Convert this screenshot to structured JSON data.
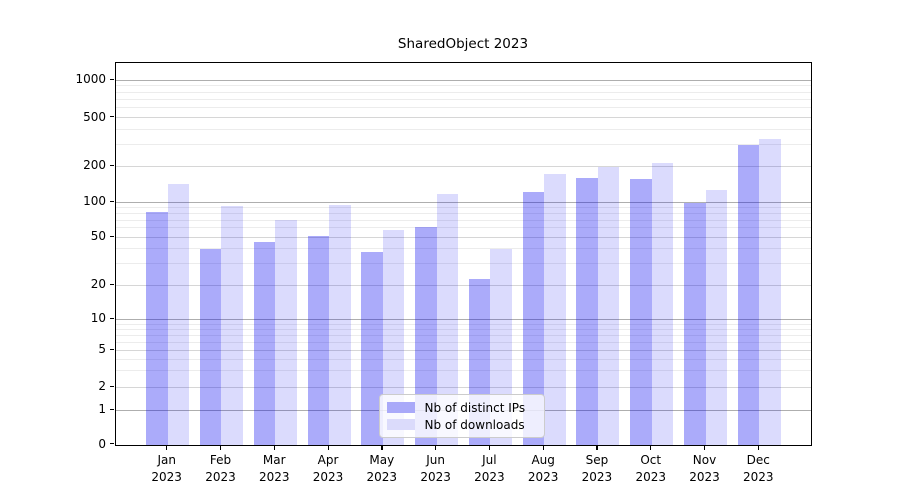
{
  "title": "SharedObject 2023",
  "legend": {
    "items": [
      {
        "label": "Nb of distinct IPs",
        "series": "distinct_ips"
      },
      {
        "label": "Nb of downloads",
        "series": "downloads"
      }
    ]
  },
  "colors": {
    "distinct_ips": "#a9a9f9",
    "downloads": "#dbdbfb",
    "distinct_ips_rgba": "rgba(0,0,240,0.33)",
    "downloads_rgba": "rgba(0,0,240,0.14)",
    "grid_major": "#aeaeae",
    "grid_tick": "#d6d6d6",
    "grid_minor": "#ececec"
  },
  "y_axis": {
    "tick_labels": [
      "0",
      "1",
      "2",
      "5",
      "10",
      "20",
      "50",
      "100",
      "200",
      "500",
      "1000"
    ]
  },
  "x_axis": {
    "months": [
      "Jan",
      "Feb",
      "Mar",
      "Apr",
      "May",
      "Jun",
      "Jul",
      "Aug",
      "Sep",
      "Oct",
      "Nov",
      "Dec"
    ],
    "year": "2023"
  },
  "chart_data": {
    "type": "bar",
    "title": "SharedObject 2023",
    "xlabel": "",
    "ylabel": "",
    "categories": [
      "Jan 2023",
      "Feb 2023",
      "Mar 2023",
      "Apr 2023",
      "May 2023",
      "Jun 2023",
      "Jul 2023",
      "Aug 2023",
      "Sep 2023",
      "Oct 2023",
      "Nov 2023",
      "Dec 2023"
    ],
    "series": [
      {
        "name": "Nb of distinct IPs",
        "values": [
          80,
          39,
          45,
          50,
          37,
          60,
          22,
          120,
          157,
          153,
          96,
          290
        ]
      },
      {
        "name": "Nb of downloads",
        "values": [
          138,
          90,
          68,
          92,
          56,
          115,
          39,
          168,
          193,
          207,
          124,
          328
        ]
      }
    ],
    "yscale": "log-like (symlog with 0 baseline)",
    "yticks": [
      0,
      1,
      2,
      5,
      10,
      20,
      50,
      100,
      200,
      500,
      1000
    ],
    "ylim": [
      0,
      1200
    ],
    "grid": true,
    "legend_position": "lower center"
  }
}
